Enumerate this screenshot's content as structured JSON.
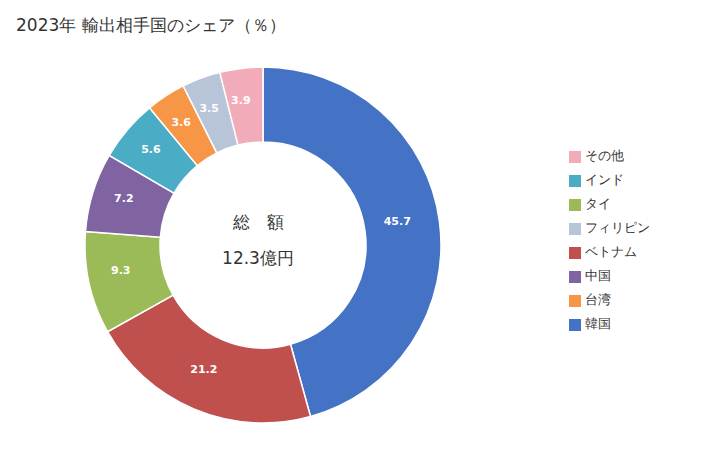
{
  "chart_data": {
    "type": "pie",
    "title": "2023年 輸出相手国のシェア（％）",
    "annotations": [
      "総　額",
      "12.3億円"
    ],
    "categories": [
      "韓国",
      "ベトナム",
      "タイ",
      "中国",
      "インド",
      "台湾",
      "フィリピン",
      "その他"
    ],
    "values": [
      45.7,
      21.2,
      9.3,
      7.2,
      5.6,
      3.6,
      3.5,
      3.9
    ],
    "colors": [
      "#4472C4",
      "#C0504D",
      "#9BBB59",
      "#8064A2",
      "#4BACC6",
      "#F79646",
      "#B8C4D8",
      "#F2ACB9"
    ],
    "data_labels": true,
    "legend": "right"
  }
}
